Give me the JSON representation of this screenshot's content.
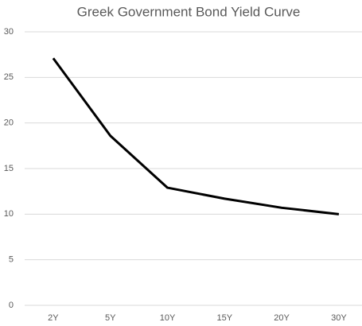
{
  "chart_data": {
    "type": "line",
    "title": "Greek Government Bond Yield Curve",
    "categories": [
      "2Y",
      "5Y",
      "10Y",
      "15Y",
      "20Y",
      "30Y"
    ],
    "values": [
      27.1,
      18.6,
      12.9,
      11.7,
      10.7,
      10.0
    ],
    "color": "#000000",
    "ylim": [
      0,
      30
    ],
    "yticks": [
      0,
      5,
      10,
      15,
      20,
      25,
      30
    ],
    "grid": true
  }
}
